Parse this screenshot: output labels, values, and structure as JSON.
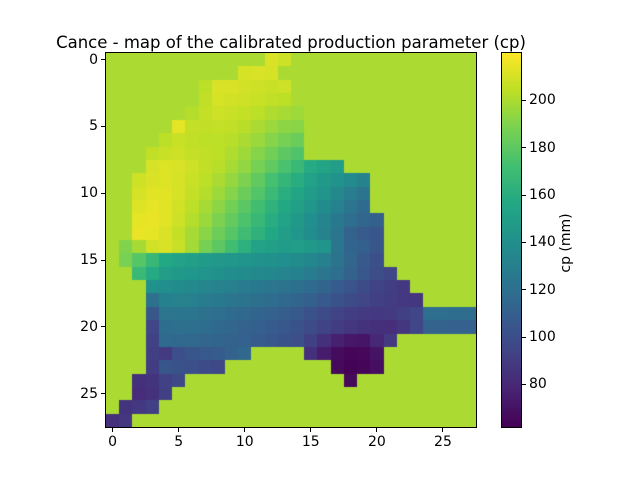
{
  "title": "Cance - map of the calibrated production parameter (cp)",
  "axes": {
    "x_ticks": [
      0,
      5,
      10,
      15,
      20,
      25
    ],
    "y_ticks": [
      0,
      5,
      10,
      15,
      20,
      25
    ]
  },
  "colorbar": {
    "label": "cp (mm)",
    "ticks": [
      80,
      100,
      120,
      140,
      160,
      180,
      200
    ]
  },
  "colors": {
    "figure_background": "#ffffff",
    "spine": "#000000",
    "text": "#000000"
  },
  "chart_data": {
    "type": "heatmap",
    "title": "Cance - map of the calibrated production parameter (cp)",
    "xlabel": "",
    "ylabel": "",
    "colorbar_label": "cp (mm)",
    "colormap": "viridis",
    "vmin": 62,
    "vmax": 220,
    "background_value": 200,
    "grid_size": [
      28,
      28
    ],
    "x_ticks": [
      0,
      5,
      10,
      15,
      20,
      25
    ],
    "y_ticks": [
      0,
      5,
      10,
      15,
      20,
      25
    ],
    "colorbar_ticks": [
      80,
      100,
      120,
      140,
      160,
      180,
      200
    ],
    "values": [
      [
        null,
        null,
        null,
        null,
        null,
        null,
        null,
        null,
        null,
        null,
        null,
        null,
        211,
        208,
        null,
        null,
        null,
        null,
        null,
        null,
        null,
        null,
        null,
        null,
        null,
        null,
        null,
        null
      ],
      [
        null,
        null,
        null,
        null,
        null,
        null,
        null,
        null,
        null,
        null,
        210,
        211,
        210,
        null,
        null,
        null,
        null,
        null,
        null,
        null,
        null,
        null,
        null,
        null,
        null,
        null,
        null,
        null
      ],
      [
        null,
        null,
        null,
        null,
        null,
        null,
        null,
        204,
        211,
        211,
        209,
        208,
        207,
        208,
        null,
        null,
        null,
        null,
        null,
        null,
        null,
        null,
        null,
        null,
        null,
        null,
        null,
        null
      ],
      [
        null,
        null,
        null,
        null,
        null,
        null,
        null,
        205,
        210,
        209,
        208,
        207,
        205,
        204,
        null,
        null,
        null,
        null,
        null,
        null,
        null,
        null,
        null,
        null,
        null,
        null,
        null,
        null
      ],
      [
        null,
        null,
        null,
        null,
        null,
        null,
        202,
        206,
        208,
        207,
        206,
        204,
        201,
        199,
        197,
        null,
        null,
        null,
        null,
        null,
        null,
        null,
        null,
        null,
        null,
        null,
        null,
        null
      ],
      [
        null,
        null,
        null,
        null,
        null,
        214,
        206,
        205,
        206,
        205,
        203,
        200,
        196,
        193,
        192,
        null,
        null,
        null,
        null,
        null,
        null,
        null,
        null,
        null,
        null,
        null,
        null,
        null
      ],
      [
        null,
        null,
        null,
        null,
        204,
        207,
        205,
        204,
        204,
        203,
        200,
        196,
        191,
        187,
        184,
        null,
        null,
        null,
        null,
        null,
        null,
        null,
        null,
        null,
        null,
        null,
        null,
        null
      ],
      [
        null,
        null,
        null,
        205,
        207,
        208,
        206,
        205,
        204,
        201,
        197,
        191,
        186,
        180,
        176,
        null,
        null,
        null,
        null,
        null,
        null,
        null,
        null,
        null,
        null,
        null,
        null,
        null
      ],
      [
        null,
        null,
        null,
        210,
        212,
        211,
        208,
        205,
        203,
        199,
        194,
        187,
        181,
        174,
        168,
        158,
        154,
        150,
        null,
        null,
        null,
        null,
        null,
        null,
        null,
        null,
        null,
        null
      ],
      [
        null,
        null,
        208,
        211,
        212,
        210,
        207,
        204,
        200,
        195,
        189,
        181,
        173,
        166,
        160,
        153,
        147,
        142,
        137,
        132,
        null,
        null,
        null,
        null,
        null,
        null,
        null,
        null
      ],
      [
        null,
        null,
        210,
        213,
        213,
        210,
        206,
        202,
        197,
        191,
        184,
        177,
        169,
        161,
        155,
        149,
        143,
        136,
        129,
        122,
        null,
        null,
        null,
        null,
        null,
        null,
        null,
        null
      ],
      [
        null,
        null,
        212,
        214,
        213,
        209,
        204,
        199,
        193,
        186,
        179,
        171,
        164,
        157,
        151,
        145,
        138,
        131,
        124,
        117,
        null,
        null,
        null,
        null,
        null,
        null,
        null,
        null
      ],
      [
        null,
        null,
        214,
        215,
        213,
        208,
        202,
        196,
        189,
        182,
        175,
        167,
        160,
        153,
        147,
        140,
        133,
        126,
        119,
        114,
        110,
        null,
        null,
        null,
        null,
        null,
        null,
        null
      ],
      [
        null,
        null,
        215,
        214,
        211,
        206,
        199,
        192,
        185,
        178,
        170,
        163,
        156,
        150,
        145,
        139,
        132,
        124,
        112,
        107,
        104,
        null,
        null,
        null,
        null,
        null,
        null,
        null
      ],
      [
        null,
        190,
        199,
        209,
        211,
        207,
        198,
        187,
        180,
        171,
        162,
        153,
        151,
        149,
        150,
        147,
        143,
        124,
        113,
        110,
        104,
        null,
        null,
        null,
        null,
        null,
        null,
        null
      ],
      [
        null,
        188,
        178,
        167,
        157,
        153,
        151,
        148,
        146,
        145,
        143,
        142,
        141,
        140,
        138,
        135,
        130,
        122,
        114,
        106,
        101,
        null,
        null,
        null,
        null,
        null,
        null,
        null
      ],
      [
        null,
        null,
        168,
        158,
        150,
        147,
        145,
        143,
        141,
        139,
        138,
        136,
        135,
        133,
        131,
        128,
        124,
        119,
        112,
        105,
        99,
        95,
        null,
        null,
        null,
        null,
        null,
        null
      ],
      [
        null,
        null,
        null,
        141,
        140,
        138,
        136,
        134,
        132,
        130,
        128,
        126,
        124,
        122,
        120,
        117,
        113,
        108,
        103,
        98,
        94,
        91,
        88,
        null,
        null,
        null,
        null,
        null
      ],
      [
        null,
        null,
        null,
        121,
        131,
        132,
        130,
        128,
        126,
        124,
        122,
        120,
        118,
        116,
        113,
        110,
        106,
        102,
        98,
        95,
        92,
        90,
        88,
        87,
        null,
        null,
        null,
        null
      ],
      [
        null,
        null,
        null,
        105,
        123,
        124,
        123,
        121,
        119,
        117,
        115,
        113,
        111,
        109,
        106,
        102,
        98,
        94,
        91,
        89,
        88,
        89,
        92,
        95,
        119,
        119,
        118,
        118
      ],
      [
        null,
        null,
        null,
        95,
        118,
        120,
        119,
        118,
        116,
        114,
        112,
        110,
        108,
        105,
        102,
        98,
        94,
        90,
        87,
        85,
        84,
        83,
        87,
        95,
        112,
        112,
        111,
        111
      ],
      [
        null,
        null,
        null,
        93,
        117,
        116,
        115,
        114,
        113,
        112,
        111,
        108,
        105,
        102,
        100,
        92,
        84,
        76,
        72,
        71,
        80,
        89,
        null,
        null,
        null,
        null,
        null,
        null
      ],
      [
        null,
        null,
        null,
        91,
        89,
        100,
        104,
        106,
        108,
        112,
        115,
        null,
        null,
        null,
        null,
        84,
        74,
        67,
        64,
        65,
        70,
        null,
        null,
        null,
        null,
        null,
        null,
        null
      ],
      [
        null,
        null,
        null,
        90,
        104,
        102,
        100,
        98,
        96,
        null,
        null,
        null,
        null,
        null,
        null,
        null,
        null,
        66,
        63,
        64,
        68,
        null,
        null,
        null,
        null,
        null,
        null,
        null
      ],
      [
        null,
        null,
        84,
        86,
        93,
        97,
        null,
        null,
        null,
        null,
        null,
        null,
        null,
        null,
        null,
        null,
        null,
        null,
        66,
        null,
        null,
        null,
        null,
        null,
        null,
        null,
        null,
        null
      ],
      [
        null,
        null,
        82,
        85,
        92,
        null,
        null,
        null,
        null,
        null,
        null,
        null,
        null,
        null,
        null,
        null,
        null,
        null,
        null,
        null,
        null,
        null,
        null,
        null,
        null,
        null,
        null,
        null
      ],
      [
        null,
        86,
        88,
        92,
        null,
        null,
        null,
        null,
        null,
        null,
        null,
        null,
        null,
        null,
        null,
        null,
        null,
        null,
        null,
        null,
        null,
        null,
        null,
        null,
        null,
        null,
        null,
        null
      ],
      [
        84,
        87,
        null,
        null,
        null,
        null,
        null,
        null,
        null,
        null,
        null,
        null,
        null,
        null,
        null,
        null,
        null,
        null,
        null,
        null,
        null,
        null,
        null,
        null,
        null,
        null,
        null,
        null
      ]
    ]
  }
}
